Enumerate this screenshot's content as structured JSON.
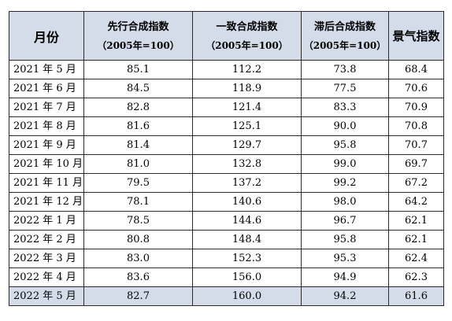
{
  "table": {
    "headers": {
      "month": "月份",
      "leading": {
        "line1": "先行合成指数",
        "line2": "（2005年=100）"
      },
      "coincident": {
        "line1": "一致合成指数",
        "line2": "（2005年=100）"
      },
      "lagging": {
        "line1": "滞后合成指数",
        "line2": "（2005年=100）"
      },
      "prosperity": "景气指数"
    },
    "rows": [
      {
        "month": "2021 年 5 月",
        "leading": "85.1",
        "coincident": "112.2",
        "lagging": "73.8",
        "prosperity": "68.4"
      },
      {
        "month": "2021 年 6 月",
        "leading": "84.5",
        "coincident": "118.9",
        "lagging": "77.5",
        "prosperity": "70.6"
      },
      {
        "month": "2021 年 7 月",
        "leading": "82.8",
        "coincident": "121.4",
        "lagging": "83.3",
        "prosperity": "70.9"
      },
      {
        "month": "2021 年 8 月",
        "leading": "81.6",
        "coincident": "125.1",
        "lagging": "90.0",
        "prosperity": "70.8"
      },
      {
        "month": "2021 年 9 月",
        "leading": "81.4",
        "coincident": "129.7",
        "lagging": "95.8",
        "prosperity": "70.7"
      },
      {
        "month": "2021 年 10 月",
        "leading": "81.0",
        "coincident": "132.8",
        "lagging": "99.0",
        "prosperity": "69.7"
      },
      {
        "month": "2021 年 11 月",
        "leading": "79.5",
        "coincident": "137.2",
        "lagging": "99.2",
        "prosperity": "67.2"
      },
      {
        "month": "2021 年 12 月",
        "leading": "78.1",
        "coincident": "140.6",
        "lagging": "98.0",
        "prosperity": "64.2"
      },
      {
        "month": "2022 年 1 月",
        "leading": "78.5",
        "coincident": "144.6",
        "lagging": "96.7",
        "prosperity": "62.1"
      },
      {
        "month": "2022 年 2 月",
        "leading": "80.8",
        "coincident": "148.4",
        "lagging": "95.8",
        "prosperity": "62.1"
      },
      {
        "month": "2022 年 3 月",
        "leading": "83.0",
        "coincident": "152.3",
        "lagging": "95.3",
        "prosperity": "62.4"
      },
      {
        "month": "2022 年 4 月",
        "leading": "83.6",
        "coincident": "156.0",
        "lagging": "94.9",
        "prosperity": "62.3"
      },
      {
        "month": "2022 年 5 月",
        "leading": "82.7",
        "coincident": "160.0",
        "lagging": "94.2",
        "prosperity": "61.6"
      }
    ],
    "highlight_color": "#d4dcea",
    "border_color": "#2b2b2b"
  }
}
